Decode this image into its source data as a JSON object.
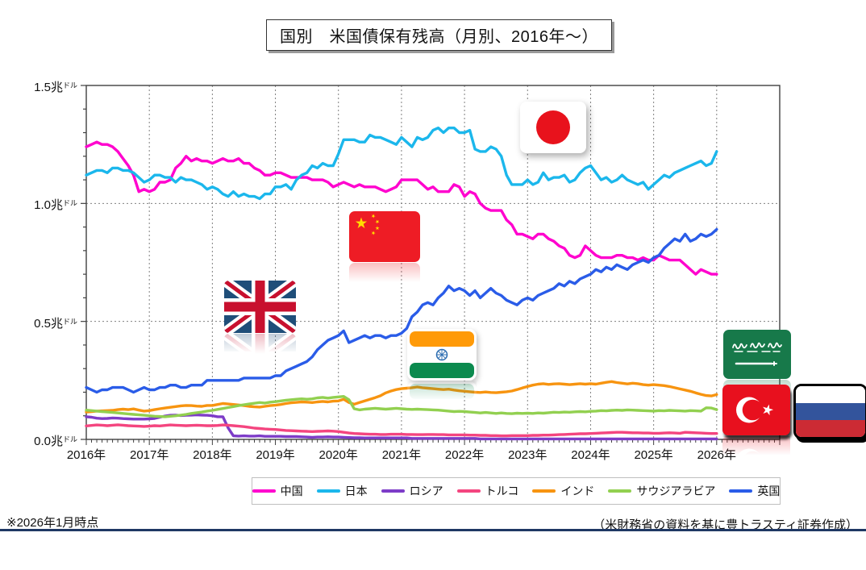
{
  "title": "国別　米国債保有残高（月別、2016年～）",
  "footnote_left": "※2026年1月時点",
  "footnote_right": "（米財務省の資料を基に豊トラスティ証券作成）",
  "colors": {
    "china": "#FF00CE",
    "japan": "#1BB7EC",
    "russia": "#7D3CC8",
    "turkey": "#F4457F",
    "india": "#F79410",
    "saudi_arabia": "#92D050",
    "uk": "#2A5CE8",
    "grid": "#808080",
    "axis": "#404040",
    "footer_rule": "#1F3864"
  },
  "flag_markers": [
    "japan-flag",
    "china-flag",
    "uk-flag",
    "india-flag",
    "saudi-arabia-flag",
    "turkey-flag",
    "russia-flag"
  ],
  "chart_data": {
    "type": "line",
    "title": "国別　米国債保有残高（月別、2016年～）",
    "x_unit": "month",
    "x_start": "2016-01",
    "x_end": "2026-01",
    "xlim_years": [
      2016,
      2027
    ],
    "ylim": [
      0,
      1.5
    ],
    "y_unit": "兆ドル",
    "y_minor_tick": 0.1,
    "x_minor_tick": "monthly",
    "grid": {
      "vertical": "yearly-dashed",
      "horizontal_values": [
        0.5,
        1.0
      ]
    },
    "legend_position": "bottom",
    "x_tick_labels": [
      "2016年",
      "2017年",
      "2018年",
      "2019年",
      "2020年",
      "2021年",
      "2022年",
      "2023年",
      "2024年",
      "2025年",
      "2026年"
    ],
    "y_ticks": [
      {
        "value": 0.0,
        "text": "0.0兆",
        "small": "ドル"
      },
      {
        "value": 0.5,
        "text": "0.5兆",
        "small": "ドル"
      },
      {
        "value": 1.0,
        "text": "1.0兆",
        "small": "ドル"
      },
      {
        "value": 1.5,
        "text": "1.5兆",
        "small": "ドル"
      }
    ],
    "series": [
      {
        "key": "china",
        "name": "中国",
        "color": "#FF00CE",
        "values": [
          1.24,
          1.25,
          1.26,
          1.25,
          1.25,
          1.24,
          1.22,
          1.19,
          1.16,
          1.12,
          1.05,
          1.06,
          1.05,
          1.06,
          1.09,
          1.09,
          1.1,
          1.15,
          1.17,
          1.2,
          1.18,
          1.19,
          1.18,
          1.18,
          1.17,
          1.18,
          1.19,
          1.18,
          1.18,
          1.19,
          1.17,
          1.17,
          1.15,
          1.14,
          1.12,
          1.12,
          1.13,
          1.13,
          1.12,
          1.11,
          1.11,
          1.11,
          1.11,
          1.1,
          1.1,
          1.1,
          1.09,
          1.07,
          1.08,
          1.09,
          1.08,
          1.07,
          1.08,
          1.07,
          1.07,
          1.07,
          1.06,
          1.05,
          1.06,
          1.07,
          1.1,
          1.1,
          1.1,
          1.1,
          1.08,
          1.06,
          1.07,
          1.05,
          1.05,
          1.05,
          1.08,
          1.07,
          1.03,
          1.05,
          1.04,
          1.0,
          0.98,
          0.97,
          0.97,
          0.97,
          0.93,
          0.91,
          0.87,
          0.87,
          0.86,
          0.85,
          0.87,
          0.87,
          0.85,
          0.84,
          0.82,
          0.81,
          0.78,
          0.77,
          0.78,
          0.82,
          0.8,
          0.78,
          0.77,
          0.77,
          0.77,
          0.78,
          0.78,
          0.77,
          0.77,
          0.76,
          0.77,
          0.76,
          0.76,
          0.78,
          0.77,
          0.76,
          0.76,
          0.76,
          0.74,
          0.72,
          0.7,
          0.72,
          0.71,
          0.7,
          0.7
        ]
      },
      {
        "key": "japan",
        "name": "日本",
        "color": "#1BB7EC",
        "values": [
          1.12,
          1.13,
          1.14,
          1.14,
          1.13,
          1.15,
          1.15,
          1.14,
          1.14,
          1.13,
          1.11,
          1.09,
          1.1,
          1.12,
          1.12,
          1.11,
          1.11,
          1.09,
          1.11,
          1.1,
          1.1,
          1.09,
          1.08,
          1.06,
          1.07,
          1.06,
          1.04,
          1.03,
          1.05,
          1.03,
          1.04,
          1.03,
          1.03,
          1.02,
          1.04,
          1.04,
          1.07,
          1.07,
          1.08,
          1.06,
          1.1,
          1.12,
          1.13,
          1.16,
          1.15,
          1.17,
          1.16,
          1.16,
          1.21,
          1.27,
          1.27,
          1.27,
          1.26,
          1.26,
          1.29,
          1.28,
          1.28,
          1.27,
          1.26,
          1.25,
          1.28,
          1.26,
          1.24,
          1.28,
          1.27,
          1.28,
          1.31,
          1.32,
          1.3,
          1.32,
          1.32,
          1.3,
          1.3,
          1.31,
          1.23,
          1.22,
          1.22,
          1.24,
          1.23,
          1.2,
          1.12,
          1.08,
          1.08,
          1.08,
          1.1,
          1.08,
          1.09,
          1.13,
          1.1,
          1.11,
          1.11,
          1.12,
          1.09,
          1.1,
          1.13,
          1.15,
          1.16,
          1.13,
          1.1,
          1.11,
          1.09,
          1.1,
          1.12,
          1.1,
          1.09,
          1.08,
          1.09,
          1.06,
          1.08,
          1.1,
          1.12,
          1.11,
          1.13,
          1.14,
          1.15,
          1.16,
          1.17,
          1.18,
          1.16,
          1.17,
          1.22
        ]
      },
      {
        "key": "russia",
        "name": "ロシア",
        "color": "#7D3CC8",
        "values": [
          0.096,
          0.094,
          0.09,
          0.088,
          0.089,
          0.091,
          0.09,
          0.088,
          0.087,
          0.086,
          0.086,
          0.086,
          0.087,
          0.089,
          0.094,
          0.099,
          0.102,
          0.103,
          0.101,
          0.102,
          0.103,
          0.104,
          0.103,
          0.102,
          0.1,
          0.096,
          0.096,
          0.049,
          0.015,
          0.014,
          0.015,
          0.014,
          0.014,
          0.015,
          0.013,
          0.013,
          0.013,
          0.013,
          0.012,
          0.012,
          0.012,
          0.011,
          0.01,
          0.009,
          0.01,
          0.01,
          0.011,
          0.01,
          0.01,
          0.009,
          0.008,
          0.007,
          0.007,
          0.006,
          0.006,
          0.006,
          0.006,
          0.006,
          0.006,
          0.006,
          0.006,
          0.006,
          0.004,
          0.004,
          0.004,
          0.004,
          0.004,
          0.004,
          0.004,
          0.004,
          0.004,
          0.004,
          0.004,
          0.004,
          0.004,
          0.002,
          0.002,
          0.002,
          0.002,
          0.002,
          0.002,
          0.002,
          0.002,
          0.002,
          0.002,
          0.002,
          0.002,
          0.002,
          0.002,
          0.002,
          0.002,
          0.002,
          0.002,
          0.002,
          0.002,
          0.002,
          0.002,
          0.002,
          0.002,
          0.002,
          0.002,
          0.002,
          0.002,
          0.002,
          0.002,
          0.002,
          0.002,
          0.002,
          0.002,
          0.002,
          0.002,
          0.002,
          0.002,
          0.002,
          0.002,
          0.002,
          0.002,
          0.002,
          0.002,
          0.002,
          0.002
        ]
      },
      {
        "key": "turkey",
        "name": "トルコ",
        "color": "#F4457F",
        "values": [
          0.057,
          0.059,
          0.061,
          0.06,
          0.058,
          0.06,
          0.062,
          0.06,
          0.058,
          0.057,
          0.056,
          0.055,
          0.056,
          0.058,
          0.057,
          0.059,
          0.061,
          0.06,
          0.059,
          0.058,
          0.059,
          0.06,
          0.059,
          0.058,
          0.058,
          0.059,
          0.061,
          0.06,
          0.058,
          0.056,
          0.054,
          0.051,
          0.048,
          0.046,
          0.044,
          0.043,
          0.042,
          0.04,
          0.038,
          0.037,
          0.036,
          0.035,
          0.034,
          0.033,
          0.034,
          0.035,
          0.036,
          0.035,
          0.033,
          0.03,
          0.027,
          0.025,
          0.024,
          0.023,
          0.022,
          0.022,
          0.021,
          0.021,
          0.022,
          0.022,
          0.022,
          0.021,
          0.021,
          0.02,
          0.02,
          0.021,
          0.021,
          0.02,
          0.02,
          0.019,
          0.019,
          0.019,
          0.019,
          0.018,
          0.018,
          0.017,
          0.017,
          0.016,
          0.016,
          0.015,
          0.015,
          0.016,
          0.016,
          0.016,
          0.016,
          0.017,
          0.017,
          0.018,
          0.018,
          0.019,
          0.02,
          0.021,
          0.022,
          0.023,
          0.024,
          0.024,
          0.025,
          0.026,
          0.027,
          0.028,
          0.029,
          0.03,
          0.03,
          0.029,
          0.028,
          0.028,
          0.027,
          0.027,
          0.026,
          0.026,
          0.027,
          0.028,
          0.027,
          0.026,
          0.03,
          0.029,
          0.028,
          0.027,
          0.026,
          0.025,
          0.025
        ]
      },
      {
        "key": "india",
        "name": "インド",
        "color": "#F79410",
        "values": [
          0.116,
          0.118,
          0.12,
          0.121,
          0.122,
          0.123,
          0.126,
          0.128,
          0.126,
          0.129,
          0.124,
          0.12,
          0.122,
          0.126,
          0.13,
          0.133,
          0.136,
          0.139,
          0.142,
          0.144,
          0.143,
          0.141,
          0.14,
          0.144,
          0.144,
          0.148,
          0.152,
          0.15,
          0.148,
          0.146,
          0.143,
          0.14,
          0.138,
          0.137,
          0.14,
          0.143,
          0.145,
          0.148,
          0.152,
          0.155,
          0.157,
          0.159,
          0.158,
          0.156,
          0.159,
          0.161,
          0.159,
          0.162,
          0.163,
          0.17,
          0.156,
          0.149,
          0.156,
          0.163,
          0.17,
          0.177,
          0.185,
          0.197,
          0.205,
          0.211,
          0.215,
          0.217,
          0.219,
          0.222,
          0.219,
          0.217,
          0.215,
          0.213,
          0.211,
          0.213,
          0.209,
          0.206,
          0.204,
          0.202,
          0.2,
          0.199,
          0.201,
          0.199,
          0.198,
          0.2,
          0.202,
          0.205,
          0.211,
          0.218,
          0.224,
          0.23,
          0.234,
          0.236,
          0.233,
          0.235,
          0.236,
          0.234,
          0.232,
          0.234,
          0.236,
          0.234,
          0.236,
          0.234,
          0.238,
          0.242,
          0.245,
          0.241,
          0.238,
          0.235,
          0.238,
          0.236,
          0.232,
          0.23,
          0.232,
          0.23,
          0.228,
          0.224,
          0.219,
          0.214,
          0.209,
          0.204,
          0.197,
          0.191,
          0.186,
          0.184,
          0.19
        ]
      },
      {
        "key": "saudi_arabia",
        "name": "サウジアラビア",
        "color": "#92D050",
        "values": [
          0.124,
          0.122,
          0.12,
          0.118,
          0.116,
          0.114,
          0.112,
          0.11,
          0.108,
          0.106,
          0.104,
          0.102,
          0.1,
          0.098,
          0.097,
          0.096,
          0.098,
          0.1,
          0.103,
          0.106,
          0.11,
          0.113,
          0.116,
          0.12,
          0.123,
          0.127,
          0.131,
          0.135,
          0.139,
          0.143,
          0.147,
          0.15,
          0.153,
          0.156,
          0.154,
          0.158,
          0.16,
          0.163,
          0.166,
          0.168,
          0.17,
          0.172,
          0.17,
          0.172,
          0.176,
          0.178,
          0.175,
          0.178,
          0.18,
          0.182,
          0.168,
          0.13,
          0.125,
          0.128,
          0.13,
          0.132,
          0.13,
          0.128,
          0.13,
          0.132,
          0.13,
          0.128,
          0.127,
          0.128,
          0.127,
          0.126,
          0.125,
          0.124,
          0.122,
          0.12,
          0.118,
          0.119,
          0.118,
          0.116,
          0.114,
          0.112,
          0.114,
          0.112,
          0.11,
          0.112,
          0.11,
          0.109,
          0.111,
          0.11,
          0.111,
          0.11,
          0.112,
          0.111,
          0.113,
          0.115,
          0.114,
          0.116,
          0.115,
          0.117,
          0.118,
          0.117,
          0.119,
          0.12,
          0.122,
          0.121,
          0.123,
          0.124,
          0.123,
          0.125,
          0.124,
          0.123,
          0.122,
          0.121,
          0.12,
          0.122,
          0.121,
          0.123,
          0.122,
          0.121,
          0.12,
          0.122,
          0.121,
          0.12,
          0.134,
          0.133,
          0.126
        ]
      },
      {
        "key": "uk",
        "name": "英国",
        "color": "#2A5CE8",
        "values": [
          0.22,
          0.21,
          0.2,
          0.21,
          0.21,
          0.22,
          0.22,
          0.22,
          0.21,
          0.2,
          0.21,
          0.22,
          0.21,
          0.21,
          0.22,
          0.22,
          0.23,
          0.23,
          0.22,
          0.22,
          0.23,
          0.23,
          0.23,
          0.25,
          0.25,
          0.25,
          0.25,
          0.25,
          0.25,
          0.25,
          0.26,
          0.26,
          0.26,
          0.26,
          0.26,
          0.26,
          0.27,
          0.27,
          0.29,
          0.3,
          0.31,
          0.32,
          0.33,
          0.35,
          0.38,
          0.4,
          0.42,
          0.43,
          0.44,
          0.46,
          0.41,
          0.42,
          0.43,
          0.44,
          0.43,
          0.44,
          0.44,
          0.43,
          0.44,
          0.44,
          0.45,
          0.47,
          0.52,
          0.54,
          0.57,
          0.58,
          0.57,
          0.6,
          0.62,
          0.65,
          0.63,
          0.64,
          0.63,
          0.61,
          0.63,
          0.6,
          0.62,
          0.64,
          0.62,
          0.61,
          0.59,
          0.58,
          0.57,
          0.59,
          0.6,
          0.59,
          0.61,
          0.62,
          0.63,
          0.64,
          0.66,
          0.65,
          0.67,
          0.66,
          0.68,
          0.69,
          0.7,
          0.72,
          0.71,
          0.73,
          0.72,
          0.74,
          0.73,
          0.72,
          0.74,
          0.75,
          0.76,
          0.75,
          0.77,
          0.78,
          0.81,
          0.83,
          0.85,
          0.84,
          0.87,
          0.84,
          0.85,
          0.87,
          0.86,
          0.87,
          0.89
        ]
      }
    ]
  }
}
